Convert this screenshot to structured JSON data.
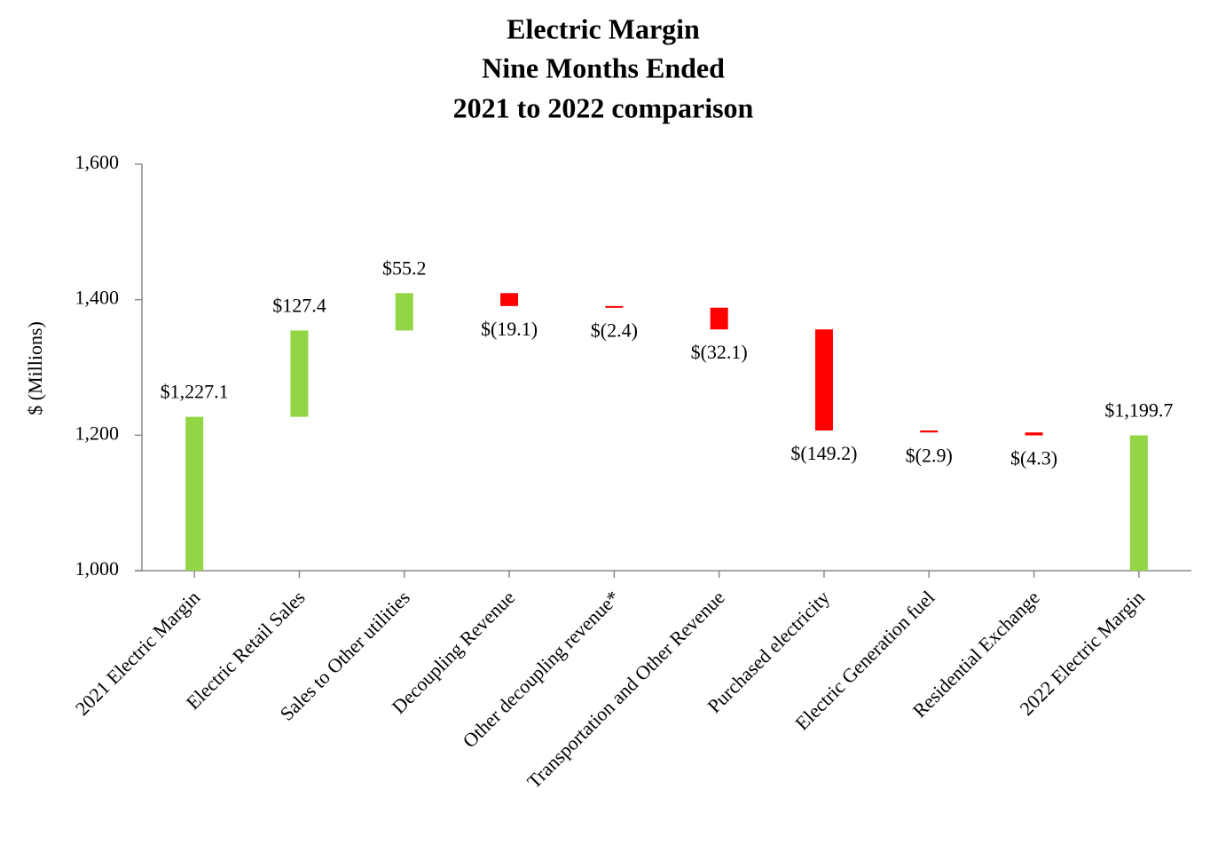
{
  "chart_data": {
    "type": "waterfall",
    "title": [
      "Electric Margin",
      "Nine Months Ended",
      "2021 to 2022 comparison"
    ],
    "y_label": "$ (Millions)",
    "categories": [
      "2021 Electric Margin",
      "Electric Retail Sales",
      "Sales to Other utilities",
      "Decoupling Revenue",
      "Other decoupling revenue*",
      "Transportation and Other Revenue",
      "Purchased electricity",
      "Electric Generation fuel",
      "Residential Exchange",
      "2022 Electric Margin"
    ],
    "measure": [
      "total",
      "relative",
      "relative",
      "relative",
      "relative",
      "relative",
      "relative",
      "relative",
      "relative",
      "total"
    ],
    "values": [
      1227.1,
      127.4,
      55.2,
      -19.1,
      -2.4,
      -32.1,
      -149.2,
      -2.9,
      -4.3,
      1199.7
    ],
    "value_labels": [
      "$1,227.1",
      "$127.4",
      "$55.2",
      "$(19.1)",
      "$(2.4)",
      "$(32.1)",
      "$(149.2)",
      "$(2.9)",
      "$(4.3)",
      "$1,199.7"
    ],
    "increase_color": "#92d645",
    "decrease_color": "#ff0000",
    "total_color": "#92d645",
    "ylim": [
      1000,
      1600
    ],
    "yticks": [
      {
        "value": 1000,
        "label": "1,000"
      },
      {
        "value": 1200,
        "label": "1,200"
      },
      {
        "value": 1400,
        "label": "1,400"
      },
      {
        "value": 1600,
        "label": "1,600"
      }
    ]
  }
}
